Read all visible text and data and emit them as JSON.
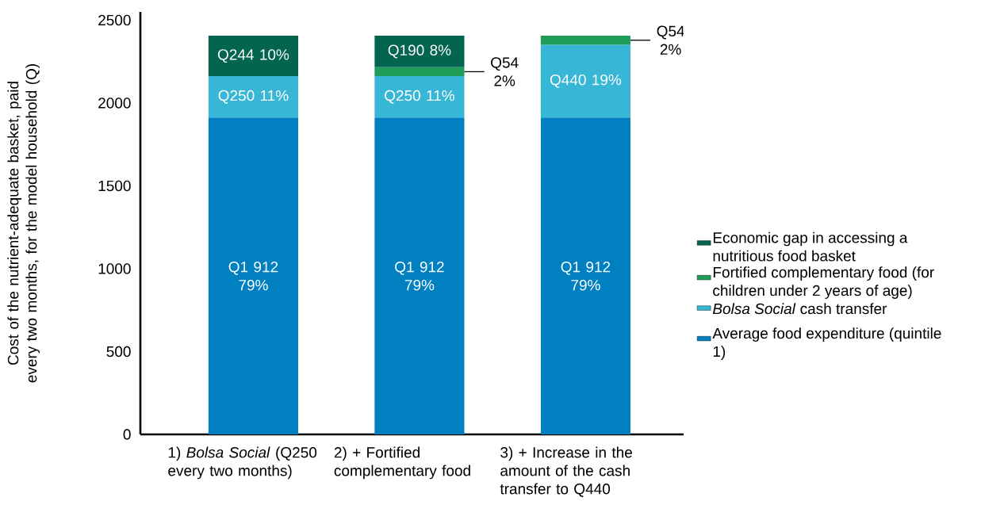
{
  "chart_data": {
    "type": "bar",
    "stacked": true,
    "ylabel": "Cost of the nutrient-adequate basket, paid every two months, for the model household (Q)",
    "categories": [
      "1) *Bolsa Social* (Q250 every two months)",
      "2) + Fortified complementary food",
      "3) + Increase in the amount of the cash transfer to Q440"
    ],
    "ylim": [
      0,
      2550
    ],
    "yticks": [
      0,
      500,
      1000,
      1500,
      2000,
      2500
    ],
    "legend": "right",
    "series": [
      {
        "name": "Average food expenditure (quintile 1)",
        "color": "#007fc1",
        "values": [
          1912,
          1912,
          1912
        ],
        "value_labels": [
          "Q1 912 79%",
          "Q1 912 79%",
          "Q1 912 79%"
        ]
      },
      {
        "name": "*Bolsa Social* cash transfer",
        "color": "#37b6d6",
        "values": [
          250,
          250,
          440
        ],
        "value_labels": [
          "Q250 11%",
          "Q250 11%",
          "Q440 19%"
        ]
      },
      {
        "name": "Fortified complementary food (for children under 2 years of age)",
        "color": "#1f9b5a",
        "values": [
          null,
          54,
          54
        ],
        "value_labels": [
          null,
          "Q54 2%",
          "Q54 2%"
        ]
      },
      {
        "name": "Economic gap in accessing a nutritious food basket",
        "color": "#03654f",
        "values": [
          244,
          190,
          null
        ],
        "value_labels": [
          "Q244 10%",
          "Q190 8%",
          null
        ]
      }
    ]
  }
}
